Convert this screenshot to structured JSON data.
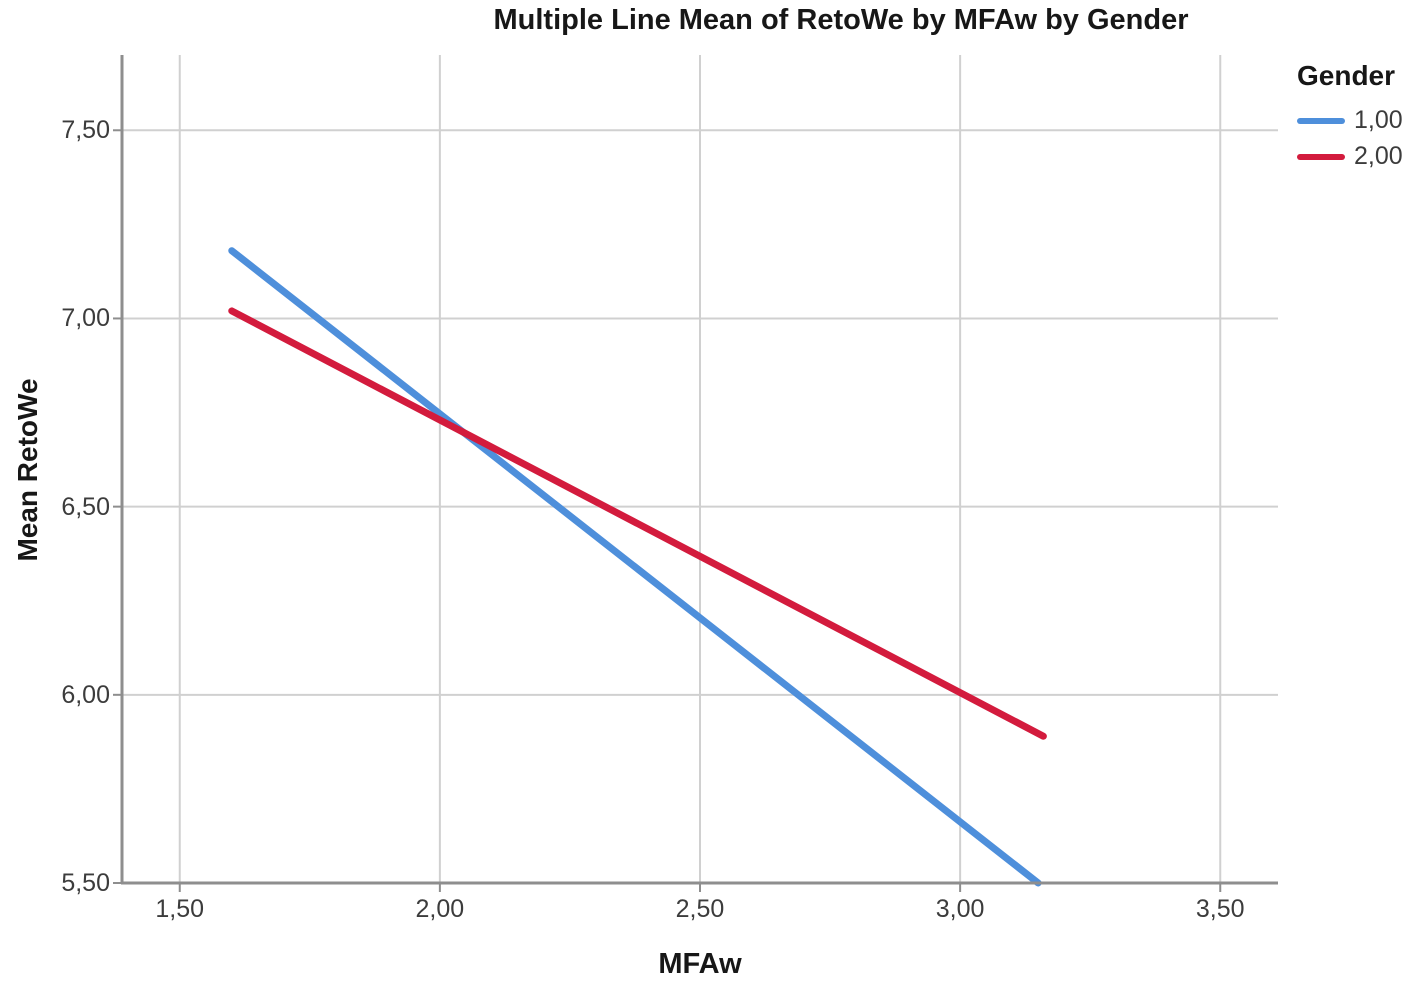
{
  "chart_data": {
    "type": "line",
    "title": "Multiple Line Mean of RetoWe by MFAw by Gender",
    "xlabel": "MFAw",
    "ylabel": "Mean RetoWe",
    "legend_title": "Gender",
    "legend_position": "top-right",
    "grid": true,
    "grid_color": "#d0d0d0",
    "axis_color": "#8e8e8e",
    "xlim": [
      1.389,
      3.611
    ],
    "ylim": [
      5.5,
      7.7
    ],
    "x_ticks": [
      {
        "value": 1.5,
        "label": "1,50"
      },
      {
        "value": 2.0,
        "label": "2,00"
      },
      {
        "value": 2.5,
        "label": "2,50"
      },
      {
        "value": 3.0,
        "label": "3,00"
      },
      {
        "value": 3.5,
        "label": "3,50"
      }
    ],
    "y_ticks": [
      {
        "value": 5.5,
        "label": "5,50"
      },
      {
        "value": 6.0,
        "label": "6,00"
      },
      {
        "value": 6.5,
        "label": "6,50"
      },
      {
        "value": 7.0,
        "label": "7,00"
      },
      {
        "value": 7.5,
        "label": "7,50"
      }
    ],
    "series": [
      {
        "name": "1,00",
        "color": "#4e8fdb",
        "points": [
          [
            1.6,
            7.18
          ],
          [
            3.15,
            5.5
          ]
        ]
      },
      {
        "name": "2,00",
        "color": "#d31b3d",
        "points": [
          [
            1.6,
            7.02
          ],
          [
            3.16,
            5.89
          ]
        ]
      }
    ]
  }
}
